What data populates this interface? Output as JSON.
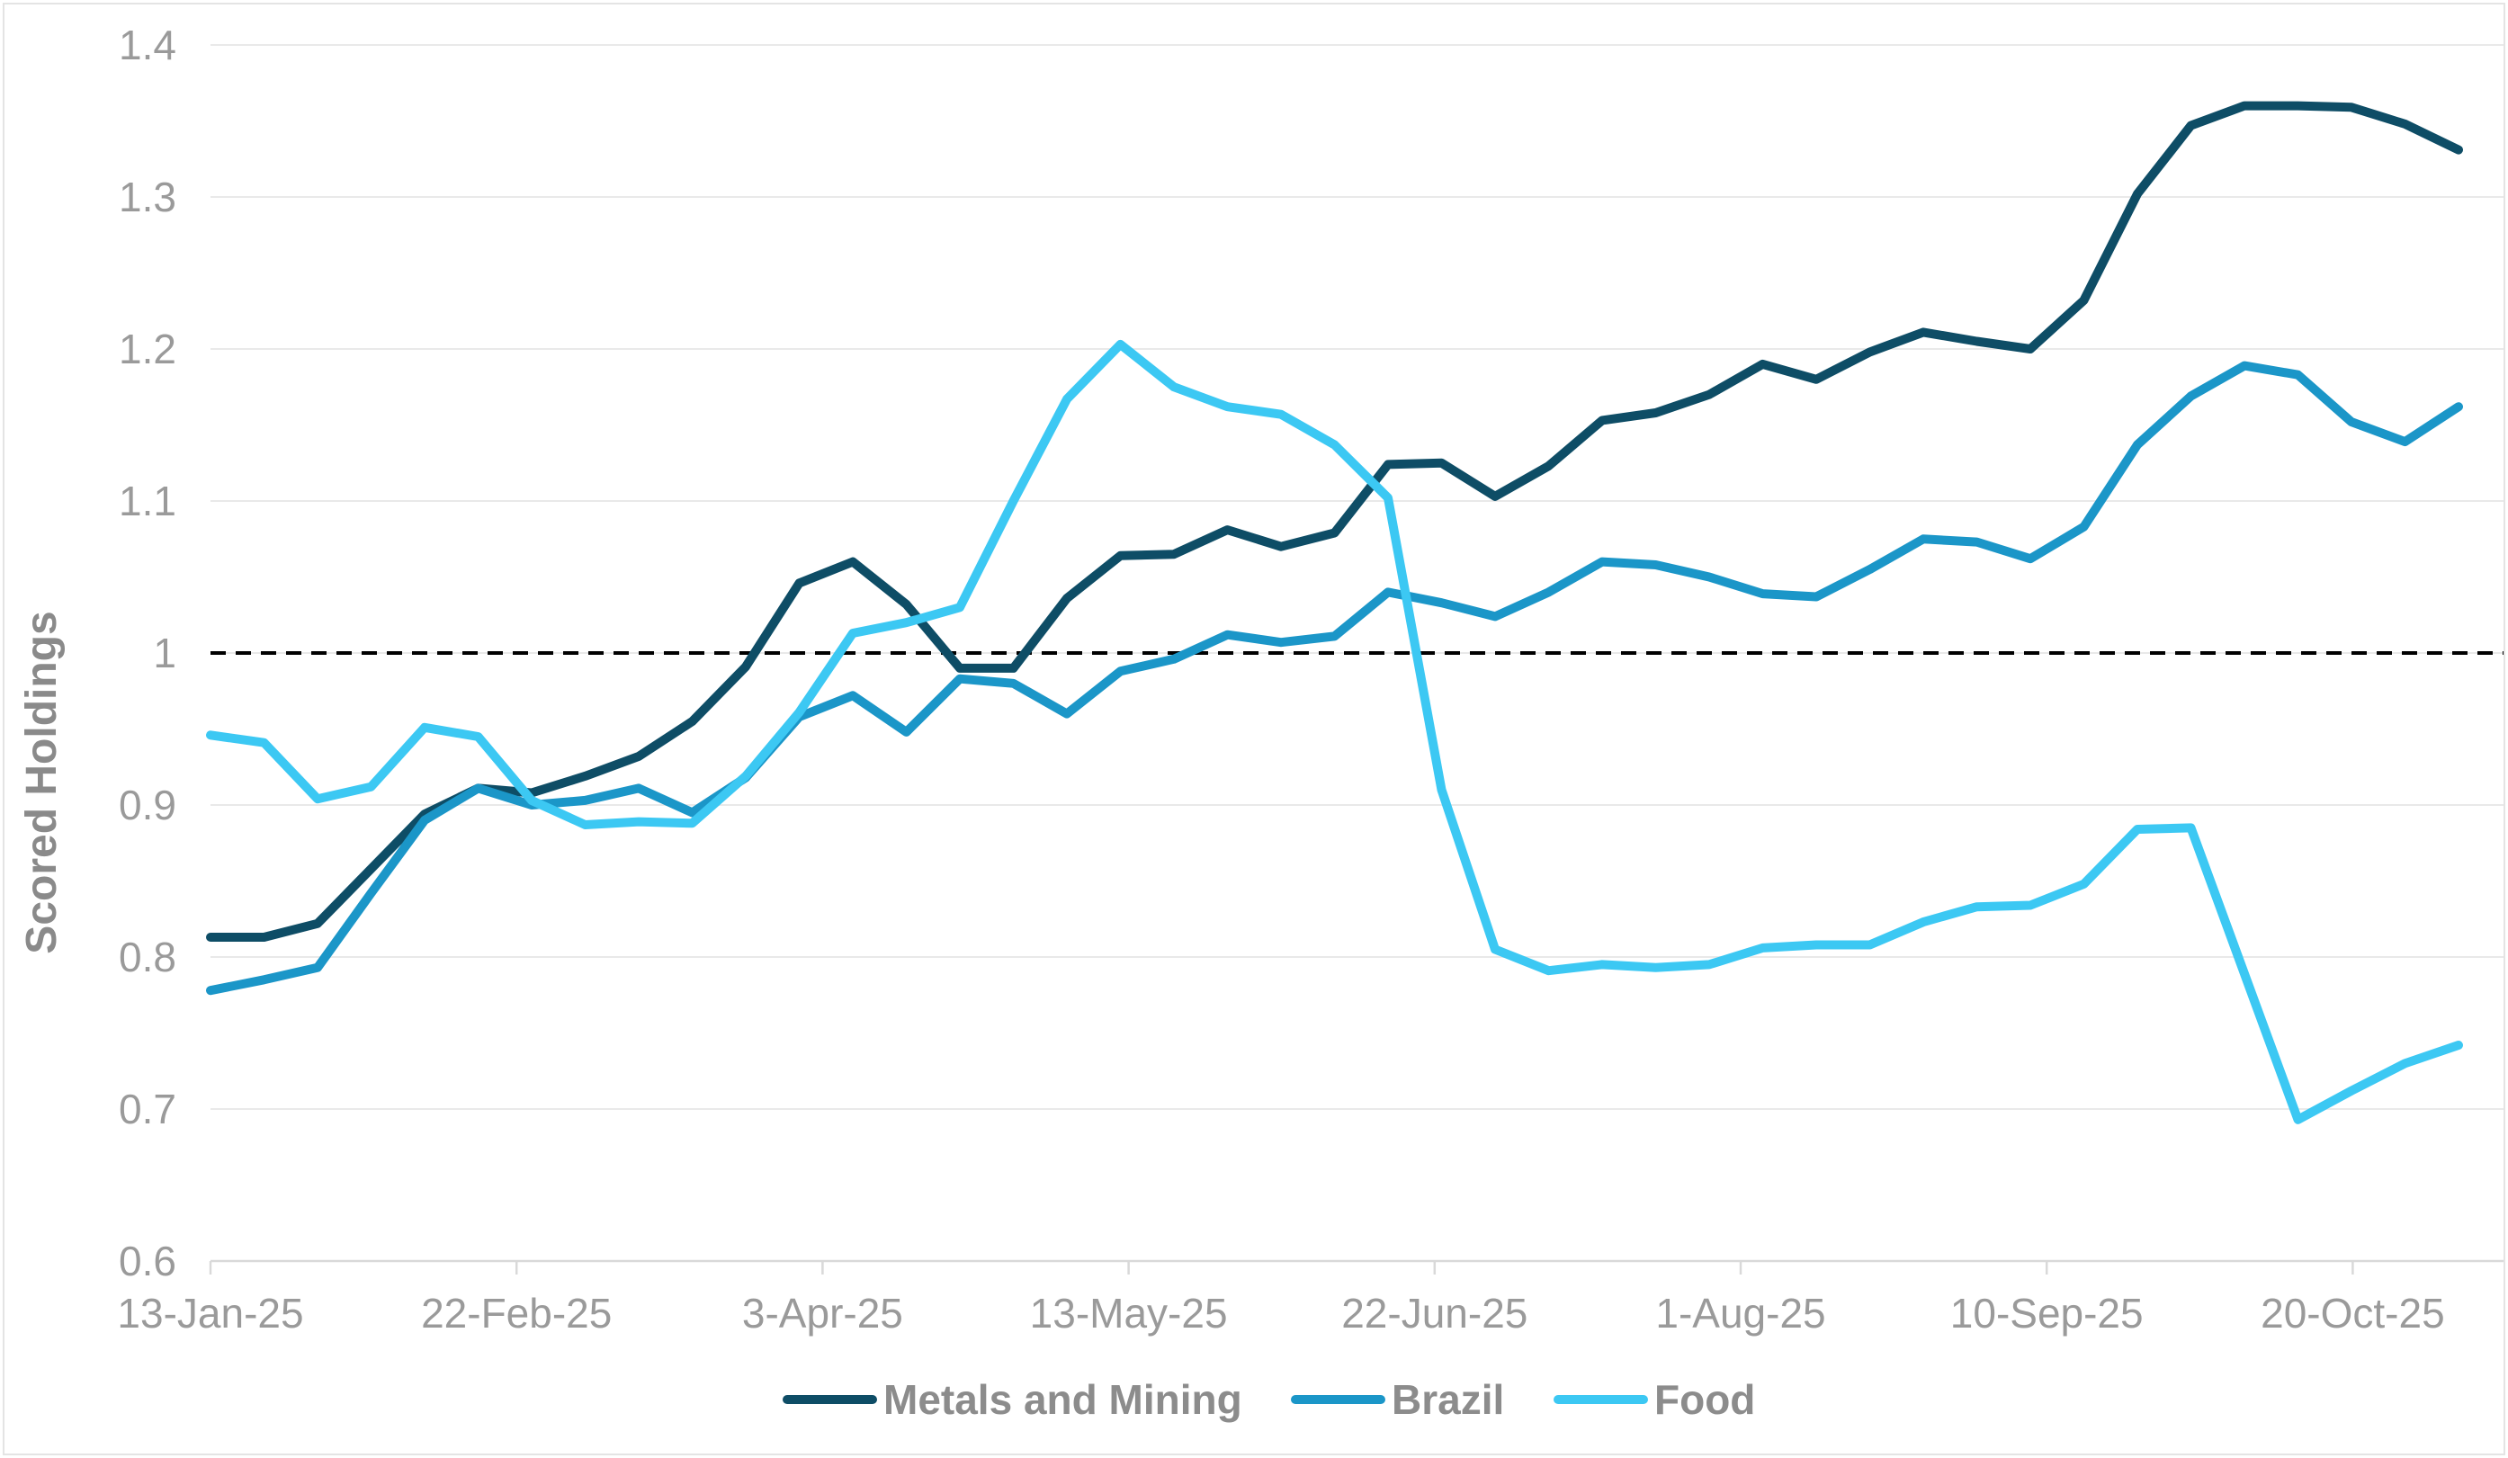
{
  "chart": {
    "y_axis_title": "Scored Holdings"
  },
  "colors": {
    "background": "#FFFFFF",
    "gridline": "#E9E9E9",
    "axis_line": "#D9D9D9",
    "chart_border": "#DDDDDD",
    "tick_label_text": "#9A9A9A",
    "axis_title_text": "#8A8A8A",
    "legend_text": "#8C8C8C",
    "reference_line": "#000000"
  },
  "chart_data": {
    "type": "line",
    "title": "",
    "xlabel": "",
    "ylabel": "Scored Holdings",
    "ylim": [
      0.6,
      1.4
    ],
    "grid": "horizontal",
    "legend_position": "bottom",
    "y_tick_values": [
      1.4,
      1.3,
      1.2,
      1.1,
      1.0,
      0.9,
      0.8,
      0.7,
      0.6
    ],
    "y_tick_labels": [
      "1.4",
      "1.3",
      "1.2",
      "1.1",
      "1",
      "0.9",
      "0.8",
      "0.7",
      "0.6"
    ],
    "x_tick_labels": [
      "13-Jan-25",
      "22-Feb-25",
      "3-Apr-25",
      "13-May-25",
      "22-Jun-25",
      "1-Aug-25",
      "10-Sep-25",
      "20-Oct-25"
    ],
    "reference_line": {
      "value": 1.0,
      "style": "dashed",
      "color": "#000000"
    },
    "x": [
      "13-Jan-25",
      "20-Jan-25",
      "27-Jan-25",
      "3-Feb-25",
      "10-Feb-25",
      "17-Feb-25",
      "24-Feb-25",
      "3-Mar-25",
      "10-Mar-25",
      "17-Mar-25",
      "24-Mar-25",
      "31-Mar-25",
      "7-Apr-25",
      "14-Apr-25",
      "21-Apr-25",
      "28-Apr-25",
      "5-May-25",
      "12-May-25",
      "19-May-25",
      "26-May-25",
      "2-Jun-25",
      "9-Jun-25",
      "16-Jun-25",
      "23-Jun-25",
      "30-Jun-25",
      "7-Jul-25",
      "14-Jul-25",
      "21-Jul-25",
      "28-Jul-25",
      "4-Aug-25",
      "11-Aug-25",
      "18-Aug-25",
      "25-Aug-25",
      "1-Sep-25",
      "8-Sep-25",
      "15-Sep-25",
      "22-Sep-25",
      "29-Sep-25",
      "6-Oct-25",
      "13-Oct-25",
      "20-Oct-25",
      "27-Oct-25",
      "3-Nov-25"
    ],
    "series": [
      {
        "name": "Metals and Mining",
        "color": "#0E4D66",
        "values": [
          0.813,
          0.813,
          0.822,
          0.858,
          0.894,
          0.911,
          0.908,
          0.919,
          0.932,
          0.955,
          0.991,
          1.046,
          1.06,
          1.032,
          0.99,
          0.99,
          1.036,
          1.064,
          1.065,
          1.081,
          1.07,
          1.079,
          1.124,
          1.125,
          1.103,
          1.123,
          1.153,
          1.158,
          1.17,
          1.19,
          1.18,
          1.198,
          1.211,
          1.205,
          1.2,
          1.232,
          1.302,
          1.347,
          1.36,
          1.36,
          1.359,
          1.348,
          1.331
        ]
      },
      {
        "name": "Brazil",
        "color": "#1B96C8",
        "values": [
          0.778,
          0.785,
          0.793,
          0.842,
          0.89,
          0.911,
          0.9,
          0.903,
          0.911,
          0.895,
          0.918,
          0.958,
          0.972,
          0.948,
          0.983,
          0.98,
          0.96,
          0.988,
          0.996,
          1.012,
          1.007,
          1.011,
          1.04,
          1.033,
          1.024,
          1.04,
          1.06,
          1.058,
          1.05,
          1.039,
          1.037,
          1.055,
          1.075,
          1.073,
          1.062,
          1.083,
          1.137,
          1.169,
          1.189,
          1.183,
          1.152,
          1.139,
          1.162
        ]
      },
      {
        "name": "Food",
        "color": "#3CC8F3",
        "values": [
          0.946,
          0.941,
          0.904,
          0.912,
          0.951,
          0.945,
          0.903,
          0.887,
          0.889,
          0.888,
          0.919,
          0.961,
          1.013,
          1.02,
          1.03,
          1.1,
          1.167,
          1.203,
          1.175,
          1.162,
          1.157,
          1.137,
          1.102,
          0.91,
          0.805,
          0.791,
          0.795,
          0.793,
          0.795,
          0.806,
          0.808,
          0.808,
          0.823,
          0.833,
          0.834,
          0.848,
          0.884,
          0.885,
          0.789,
          0.693,
          0.712,
          0.73,
          0.742
        ]
      }
    ]
  }
}
